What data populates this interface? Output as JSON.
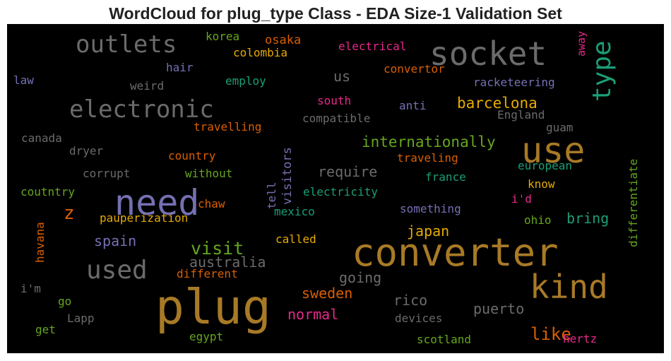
{
  "chart_data": {
    "type": "wordcloud",
    "title": "WordCloud for plug_type Class - EDA Size-1 Validation Set",
    "background": "#000000",
    "colors": {
      "grey": "#6b6b6b",
      "gold": "#a87a26",
      "teal": "#1b9e77",
      "orange": "#d95f02",
      "purple": "#7570b3",
      "pink": "#e7298a",
      "green": "#66a61e",
      "yellow": "#e6ab02"
    },
    "words": [
      {
        "text": "plug",
        "color": "gold"
      },
      {
        "text": "converter",
        "color": "gold"
      },
      {
        "text": "socket",
        "color": "grey"
      },
      {
        "text": "need",
        "color": "purple"
      },
      {
        "text": "use",
        "color": "gold"
      },
      {
        "text": "kind",
        "color": "gold"
      },
      {
        "text": "outlets",
        "color": "grey"
      },
      {
        "text": "electronic",
        "color": "grey"
      },
      {
        "text": "used",
        "color": "grey"
      },
      {
        "text": "type",
        "color": "teal"
      },
      {
        "text": "visit",
        "color": "green"
      },
      {
        "text": "barcelona",
        "color": "yellow"
      },
      {
        "text": "internationally",
        "color": "green"
      },
      {
        "text": "require",
        "color": "grey"
      },
      {
        "text": "z",
        "color": "orange"
      },
      {
        "text": "spain",
        "color": "purple"
      },
      {
        "text": "australia",
        "color": "grey"
      },
      {
        "text": "japan",
        "color": "yellow"
      },
      {
        "text": "bring",
        "color": "teal"
      },
      {
        "text": "like",
        "color": "orange"
      },
      {
        "text": "going",
        "color": "grey"
      },
      {
        "text": "sweden",
        "color": "orange"
      },
      {
        "text": "normal",
        "color": "pink"
      },
      {
        "text": "rico",
        "color": "grey"
      },
      {
        "text": "puerto",
        "color": "grey"
      },
      {
        "text": "us",
        "color": "grey"
      },
      {
        "text": "korea",
        "color": "green"
      },
      {
        "text": "osaka",
        "color": "orange"
      },
      {
        "text": "colombia",
        "color": "yellow"
      },
      {
        "text": "electrical",
        "color": "pink"
      },
      {
        "text": "away",
        "color": "pink"
      },
      {
        "text": "hair",
        "color": "purple"
      },
      {
        "text": "law",
        "color": "purple"
      },
      {
        "text": "weird",
        "color": "grey"
      },
      {
        "text": "employ",
        "color": "teal"
      },
      {
        "text": "convertor",
        "color": "orange"
      },
      {
        "text": "racketeering",
        "color": "purple"
      },
      {
        "text": "south",
        "color": "pink"
      },
      {
        "text": "anti",
        "color": "purple"
      },
      {
        "text": "compatible",
        "color": "grey"
      },
      {
        "text": "England",
        "color": "grey"
      },
      {
        "text": "travelling",
        "color": "orange"
      },
      {
        "text": "guam",
        "color": "grey"
      },
      {
        "text": "canada",
        "color": "grey"
      },
      {
        "text": "dryer",
        "color": "grey"
      },
      {
        "text": "country",
        "color": "orange"
      },
      {
        "text": "visitors",
        "color": "purple"
      },
      {
        "text": "traveling",
        "color": "orange"
      },
      {
        "text": "european",
        "color": "teal"
      },
      {
        "text": "differentiate",
        "color": "green"
      },
      {
        "text": "corrupt",
        "color": "grey"
      },
      {
        "text": "without",
        "color": "green"
      },
      {
        "text": "france",
        "color": "teal"
      },
      {
        "text": "know",
        "color": "yellow"
      },
      {
        "text": "coutntry",
        "color": "green"
      },
      {
        "text": "chaw",
        "color": "orange"
      },
      {
        "text": "tell",
        "color": "purple"
      },
      {
        "text": "electricity",
        "color": "teal"
      },
      {
        "text": "i'd",
        "color": "pink"
      },
      {
        "text": "mexico",
        "color": "teal"
      },
      {
        "text": "something",
        "color": "purple"
      },
      {
        "text": "pauperization",
        "color": "yellow"
      },
      {
        "text": "ohio",
        "color": "green"
      },
      {
        "text": "havana",
        "color": "orange"
      },
      {
        "text": "called",
        "color": "yellow"
      },
      {
        "text": "different",
        "color": "orange"
      },
      {
        "text": "i'm",
        "color": "grey"
      },
      {
        "text": "go",
        "color": "green"
      },
      {
        "text": "Lapp",
        "color": "grey"
      },
      {
        "text": "devices",
        "color": "grey"
      },
      {
        "text": "get",
        "color": "green"
      },
      {
        "text": "egypt",
        "color": "green"
      },
      {
        "text": "scotland",
        "color": "green"
      },
      {
        "text": "hertz",
        "color": "pink"
      }
    ]
  }
}
